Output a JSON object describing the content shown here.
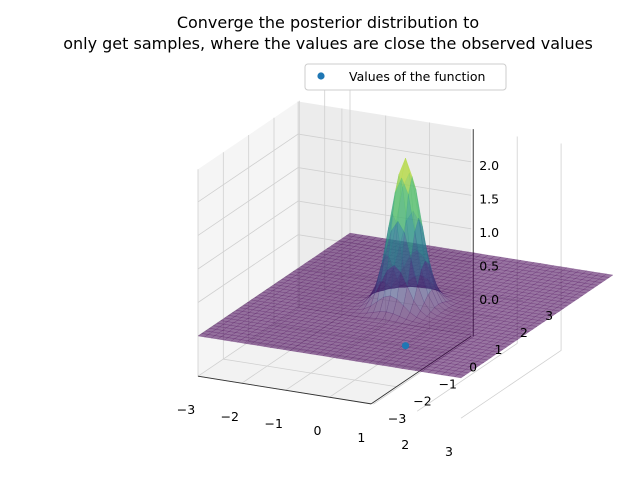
{
  "chart_data": {
    "type": "surface3d",
    "title_lines": [
      "Converge the posterior distribution to",
      "only get samples, where the values are close the observed values"
    ],
    "xlabel": "",
    "ylabel": "",
    "zlabel": "",
    "xlim": [
      -3,
      3
    ],
    "ylim": [
      -3,
      3
    ],
    "zlim": [
      0,
      2.2
    ],
    "x_ticks": [
      -3,
      -2,
      -1,
      0,
      1,
      2,
      3
    ],
    "y_ticks": [
      -3,
      -2,
      -1,
      0,
      1,
      2,
      3
    ],
    "z_ticks": [
      "0.0",
      "0.5",
      "1.0",
      "1.5",
      "2.0"
    ],
    "grid": true,
    "legend": {
      "position": "top-right",
      "entries": [
        "Values of the function"
      ]
    },
    "surface": {
      "function": "gaussian peak",
      "peak_height": 2.2,
      "peak_x": 0.0,
      "peak_y": 0.0,
      "width_sigma": 0.3,
      "base_value": 0.0,
      "colormap": "viridis",
      "alpha": 0.55
    },
    "series": [
      {
        "name": "Values of the function",
        "type": "scatter",
        "color": "#1f77b4",
        "points": [
          {
            "x": 0.0,
            "y": 0.0,
            "z": -0.6
          }
        ]
      }
    ]
  }
}
